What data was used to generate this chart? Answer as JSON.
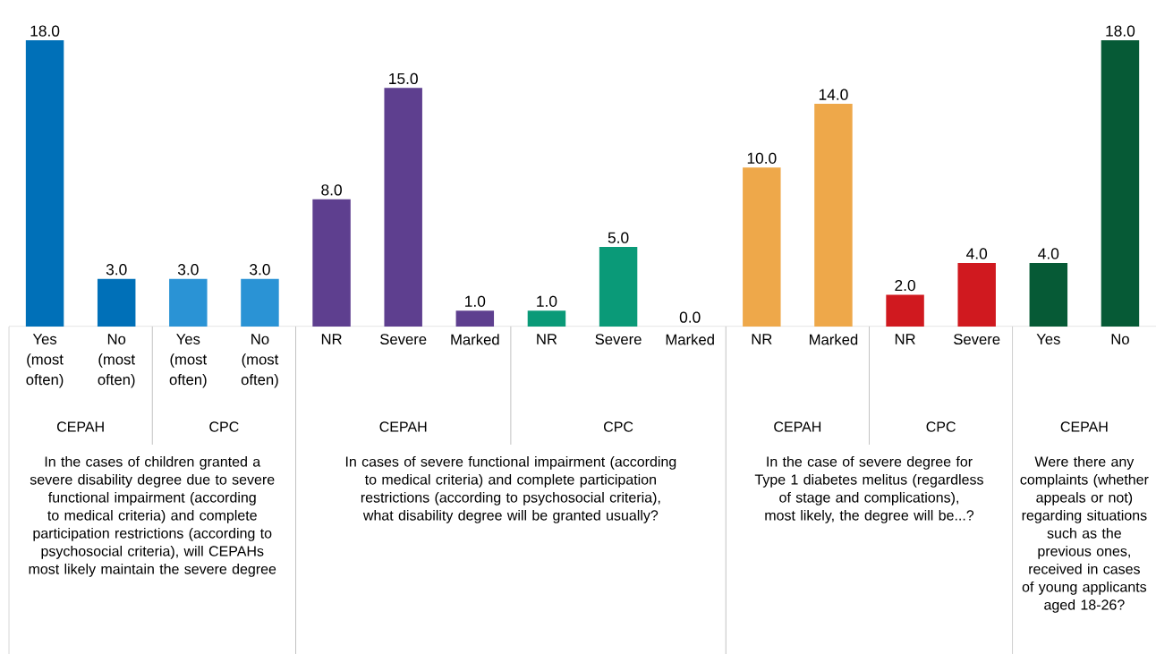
{
  "chart_data": {
    "type": "bar",
    "categories": [
      "Yes (most often)",
      "No (most often)",
      "Yes (most often)",
      "No (most often)",
      "NR",
      "Severe",
      "Marked",
      "NR",
      "Severe",
      "Marked",
      "NR",
      "Marked",
      "NR",
      "Severe",
      "Yes",
      "No"
    ],
    "values": [
      18,
      3,
      3,
      3,
      8,
      15,
      1,
      1,
      5,
      0,
      10,
      14,
      2,
      4,
      4,
      18
    ],
    "value_labels": [
      "18.0",
      "3.0",
      "3.0",
      "3.0",
      "8.0",
      "15.0",
      "1.0",
      "1.0",
      "5.0",
      "0.0",
      "10.0",
      "14.0",
      "2.0",
      "4.0",
      "4.0",
      "18.0"
    ],
    "colors": [
      "#0070b8",
      "#0070b8",
      "#2a93d5",
      "#2a93d5",
      "#5e3f8f",
      "#5e3f8f",
      "#5e3f8f",
      "#0a9a78",
      "#0a9a78",
      "#0a9a78",
      "#eea84a",
      "#eea84a",
      "#d0191f",
      "#d0191f",
      "#065a36",
      "#065a36"
    ],
    "ylim": [
      0,
      18
    ],
    "tick_labels": "x",
    "annotations": [
      "CEPAH",
      "CPC",
      "CEPAH",
      "CPC",
      "CEPAH",
      "CPC",
      "CEPAH",
      "In the cases of children granted a severe disability degree due to severe functional impairment (according to medical criteria) and complete participation restrictions (according to psychosocial criteria), will CEPAHs most likely maintain the severe degree",
      "In cases of severe functional impairment (according to medical criteria) and complete participation restrictions (according to psychosocial criteria), what disability degree will be granted usually?",
      "In the case of severe degree for Type 1 diabetes melitus (regardless of stage and complications), most likely, the degree will be...?",
      "Were there any complaints (whether appeals or not) regarding situations such as the previous ones, received in cases of young applicants aged 18-26?"
    ]
  }
}
